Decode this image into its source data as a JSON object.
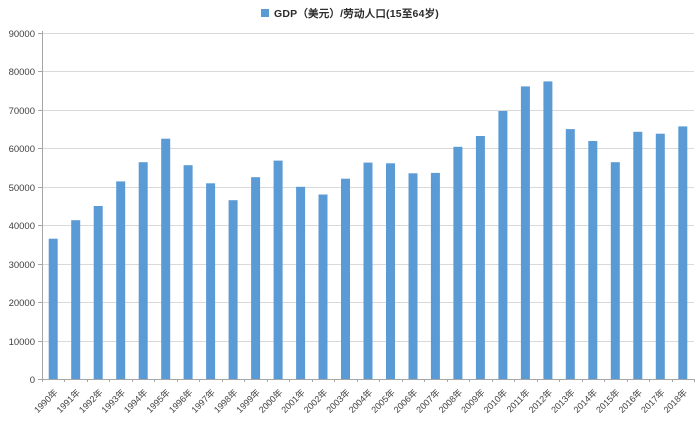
{
  "legend": {
    "label": "GDP（美元）/劳动人口(15至64岁)",
    "marker_color": "#5b9bd5"
  },
  "chart_data": {
    "type": "bar",
    "title": "",
    "series_name": "GDP（美元）/劳动人口(15至64岁)",
    "categories": [
      "1990年",
      "1991年",
      "1992年",
      "1993年",
      "1994年",
      "1995年",
      "1996年",
      "1997年",
      "1998年",
      "1999年",
      "2000年",
      "2001年",
      "2002年",
      "2003年",
      "2004年",
      "2005年",
      "2006年",
      "2007年",
      "2008年",
      "2009年",
      "2010年",
      "2011年",
      "2012年",
      "2013年",
      "2014年",
      "2015年",
      "2016年",
      "2017年",
      "2018年"
    ],
    "values": [
      36500,
      41300,
      45000,
      51400,
      56400,
      62500,
      55600,
      50900,
      46500,
      52500,
      56800,
      50000,
      48000,
      52100,
      56300,
      56100,
      53500,
      53600,
      60400,
      63200,
      69700,
      76100,
      77400,
      65000,
      61900,
      56400,
      64300,
      63800,
      65700
    ],
    "xlabel": "",
    "ylabel": "",
    "ylim": [
      0,
      90000
    ],
    "ytick_step": 10000,
    "ytick_labels": [
      "0",
      "10000",
      "20000",
      "30000",
      "40000",
      "50000",
      "60000",
      "70000",
      "80000",
      "90000"
    ],
    "grid": "horizontal",
    "legend_position": "top-center",
    "colors": {
      "bar": "#5b9bd5",
      "gridline": "#d9d9d9",
      "axis": "#a6a6a6",
      "tick_label": "#404040"
    }
  }
}
